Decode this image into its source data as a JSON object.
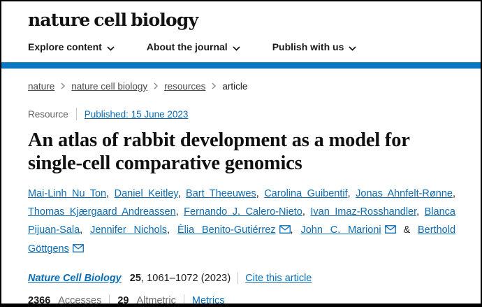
{
  "brand": {
    "logo_text": "nature cell biology",
    "brand_blue": "#0879c1",
    "link_blue": "#0a6cb3"
  },
  "nav": {
    "items": [
      {
        "label": "Explore content"
      },
      {
        "label": "About the journal"
      },
      {
        "label": "Publish with us"
      }
    ]
  },
  "breadcrumb": {
    "items": [
      {
        "label": "nature"
      },
      {
        "label": "nature cell biology"
      },
      {
        "label": "resources"
      },
      {
        "label": "article"
      }
    ]
  },
  "article": {
    "type_label": "Resource",
    "published": "Published: 15 June 2023",
    "title": "An atlas of rabbit development as a model for single-cell comparative genomics",
    "author_separator": ",",
    "author_last_separator": "&",
    "authors": [
      {
        "name": "Mai-Linh Nu Ton",
        "email_icon": false
      },
      {
        "name": "Daniel Keitley",
        "email_icon": false
      },
      {
        "name": "Bart Theeuwes",
        "email_icon": false
      },
      {
        "name": "Carolina Guibentif",
        "email_icon": false
      },
      {
        "name": "Jonas Ahnfelt-Rønne",
        "email_icon": false
      },
      {
        "name": "Thomas Kjærgaard Andreassen",
        "email_icon": false
      },
      {
        "name": "Fernando J. Calero-Nieto",
        "email_icon": false
      },
      {
        "name": "Ivan Imaz-Rosshandler",
        "email_icon": false
      },
      {
        "name": "Blanca Pijuan-Sala",
        "email_icon": false
      },
      {
        "name": "Jennifer Nichols",
        "email_icon": false
      },
      {
        "name": "Èlia Benito-Gutiérrez",
        "email_icon": true
      },
      {
        "name": "John C. Marioni",
        "email_icon": true
      },
      {
        "name": "Berthold Göttgens",
        "email_icon": true
      }
    ]
  },
  "citation": {
    "journal": "Nature Cell Biology",
    "volume": "25",
    "pages_year": ", 1061–1072 (2023)",
    "cite_label": "Cite this article"
  },
  "metrics": {
    "accesses_value": "2366",
    "accesses_label": "Accesses",
    "altmetric_value": "29",
    "altmetric_label": "Altmetric",
    "metrics_label": "Metrics"
  }
}
